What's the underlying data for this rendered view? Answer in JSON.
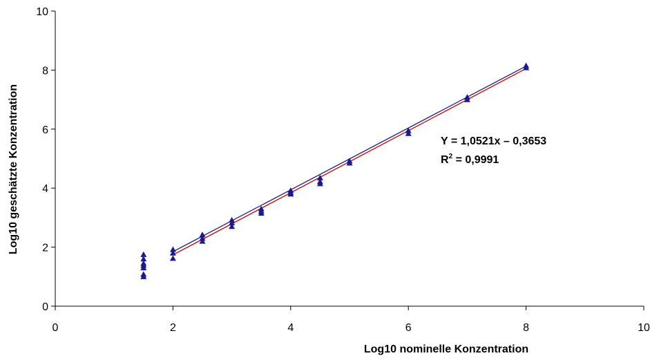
{
  "chart_data": {
    "type": "scatter",
    "title": "",
    "xlabel": "Log10 nominelle Konzentration",
    "ylabel": "Log10 geschätzte Konzentration",
    "xlim": [
      0,
      10
    ],
    "ylim": [
      0,
      10
    ],
    "x_ticks": [
      "0",
      "2",
      "4",
      "6",
      "8",
      "10"
    ],
    "y_ticks": [
      "0",
      "2",
      "4",
      "6",
      "8",
      "10"
    ],
    "grid": false,
    "legend": "none",
    "marker": "triangle",
    "colors": {
      "points": "#1a1a8c",
      "trendline": "#cc0000",
      "fitline": "#1a1a8c",
      "axis": "#000000"
    },
    "points": [
      {
        "x": 1.5,
        "y": 1.75
      },
      {
        "x": 1.5,
        "y": 1.6
      },
      {
        "x": 1.5,
        "y": 1.45
      },
      {
        "x": 1.5,
        "y": 1.38
      },
      {
        "x": 1.5,
        "y": 1.3
      },
      {
        "x": 1.5,
        "y": 1.08
      },
      {
        "x": 1.5,
        "y": 1.0
      },
      {
        "x": 2,
        "y": 1.92
      },
      {
        "x": 2,
        "y": 1.8
      },
      {
        "x": 2,
        "y": 1.62
      },
      {
        "x": 2.5,
        "y": 2.42
      },
      {
        "x": 2.5,
        "y": 2.3
      },
      {
        "x": 2.5,
        "y": 2.2
      },
      {
        "x": 3,
        "y": 2.92
      },
      {
        "x": 3,
        "y": 2.82
      },
      {
        "x": 3,
        "y": 2.7
      },
      {
        "x": 3.5,
        "y": 3.3
      },
      {
        "x": 3.5,
        "y": 3.22
      },
      {
        "x": 3.5,
        "y": 3.15
      },
      {
        "x": 4,
        "y": 3.92
      },
      {
        "x": 4,
        "y": 3.85
      },
      {
        "x": 4,
        "y": 3.8
      },
      {
        "x": 4.5,
        "y": 4.35
      },
      {
        "x": 4.5,
        "y": 4.22
      },
      {
        "x": 4.5,
        "y": 4.15
      },
      {
        "x": 5,
        "y": 4.92
      },
      {
        "x": 5,
        "y": 4.85
      },
      {
        "x": 6,
        "y": 5.95
      },
      {
        "x": 6,
        "y": 5.85
      },
      {
        "x": 7,
        "y": 7.08
      },
      {
        "x": 7,
        "y": 7.0
      },
      {
        "x": 8,
        "y": 8.15
      },
      {
        "x": 8,
        "y": 8.08
      }
    ],
    "trendline": {
      "slope": 1.0521,
      "intercept": -0.3653,
      "x_range": [
        2,
        8
      ],
      "equation_label": "Y = 1,0521x – 0,3653",
      "r2_prefix": "R",
      "r2_exponent": "2",
      "r2_value_text": " = 0,9991"
    }
  }
}
